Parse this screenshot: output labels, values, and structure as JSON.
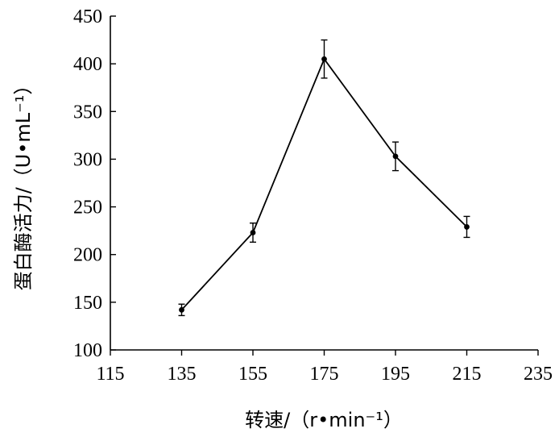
{
  "chart_data": {
    "type": "line",
    "xlabel": "转速/（r•min⁻¹）",
    "ylabel": "蛋白酶活力/（U•mL⁻¹）",
    "xlim": [
      115,
      235
    ],
    "ylim": [
      100,
      450
    ],
    "xticks": [
      "115",
      "135",
      "155",
      "175",
      "195",
      "215",
      "235"
    ],
    "yticks": [
      "100",
      "150",
      "200",
      "250",
      "300",
      "350",
      "400",
      "450"
    ],
    "grid": false,
    "series": [
      {
        "x": [
          135,
          155,
          175,
          195,
          215
        ],
        "values": [
          142,
          223,
          405,
          303,
          229
        ],
        "error": [
          6,
          10,
          20,
          15,
          11
        ],
        "color": "#000000",
        "marker": "circle"
      }
    ]
  }
}
